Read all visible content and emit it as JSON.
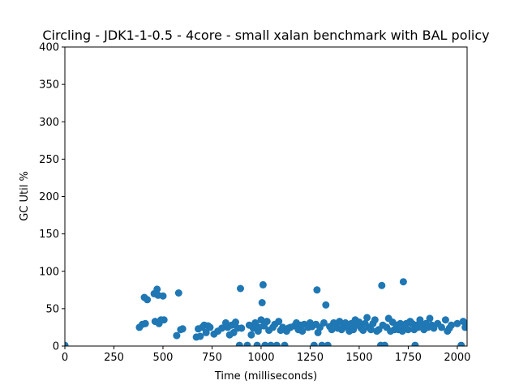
{
  "chart_data": {
    "type": "scatter",
    "title": "Circling - JDK1-1-0.5 - 4core -  small xalan benchmark with BAL policy",
    "xlabel": "Time (milliseconds)",
    "ylabel": "GC Util %",
    "xlim": [
      0,
      2050
    ],
    "ylim": [
      0,
      400
    ],
    "xticks": [
      0,
      250,
      500,
      750,
      1000,
      1250,
      1500,
      1750,
      2000
    ],
    "yticks": [
      0,
      50,
      100,
      150,
      200,
      250,
      300,
      350,
      400
    ],
    "grid": false,
    "color": "#1f77b4",
    "series": [
      {
        "x": [
          0,
          380,
          395,
          405,
          410,
          420,
          455,
          460,
          470,
          475,
          480,
          490,
          500,
          505,
          570,
          580,
          590,
          600,
          670,
          680,
          690,
          700,
          710,
          720,
          730,
          740,
          760,
          780,
          800,
          820,
          830,
          840,
          850,
          860,
          870,
          880,
          890,
          895,
          900,
          930,
          940,
          950,
          960,
          970,
          980,
          985,
          990,
          1000,
          1005,
          1010,
          1015,
          1020,
          1030,
          1040,
          1050,
          1060,
          1070,
          1080,
          1090,
          1100,
          1110,
          1120,
          1130,
          1140,
          1150,
          1170,
          1180,
          1190,
          1200,
          1210,
          1220,
          1240,
          1250,
          1260,
          1270,
          1280,
          1285,
          1290,
          1300,
          1310,
          1320,
          1330,
          1340,
          1350,
          1360,
          1370,
          1380,
          1390,
          1400,
          1410,
          1420,
          1430,
          1440,
          1450,
          1460,
          1470,
          1480,
          1490,
          1500,
          1510,
          1520,
          1530,
          1540,
          1550,
          1560,
          1570,
          1580,
          1590,
          1600,
          1610,
          1615,
          1620,
          1630,
          1640,
          1650,
          1660,
          1670,
          1680,
          1690,
          1700,
          1710,
          1720,
          1725,
          1730,
          1740,
          1750,
          1760,
          1770,
          1780,
          1785,
          1790,
          1800,
          1810,
          1820,
          1830,
          1840,
          1850,
          1860,
          1870,
          1880,
          1900,
          1920,
          1940,
          1950,
          1960,
          1970,
          2000,
          2020,
          2030,
          2040,
          2050
        ],
        "y": [
          1,
          25,
          29,
          65,
          30,
          62,
          70,
          33,
          76,
          68,
          30,
          35,
          67,
          35,
          14,
          71,
          22,
          23,
          12,
          23,
          13,
          25,
          28,
          18,
          27,
          25,
          16,
          20,
          24,
          31,
          25,
          15,
          28,
          18,
          32,
          24,
          1,
          77,
          24,
          1,
          28,
          15,
          24,
          31,
          1,
          20,
          25,
          35,
          58,
          82,
          27,
          1,
          33,
          21,
          1,
          25,
          29,
          1,
          33,
          21,
          25,
          1,
          20,
          24,
          25,
          27,
          31,
          22,
          28,
          20,
          29,
          25,
          31,
          26,
          1,
          29,
          75,
          18,
          25,
          1,
          31,
          55,
          1,
          26,
          22,
          31,
          30,
          24,
          33,
          22,
          28,
          31,
          25,
          20,
          30,
          22,
          35,
          28,
          32,
          24,
          21,
          30,
          38,
          25,
          22,
          30,
          35,
          20,
          22,
          1,
          81,
          28,
          1,
          25,
          37,
          20,
          32,
          22,
          28,
          22,
          30,
          20,
          86,
          25,
          30,
          22,
          33,
          30,
          22,
          1,
          28,
          25,
          35,
          28,
          22,
          30,
          25,
          37,
          28,
          24,
          30,
          25,
          35,
          20,
          24,
          28,
          30,
          1,
          33,
          25,
          27
        ]
      }
    ]
  }
}
